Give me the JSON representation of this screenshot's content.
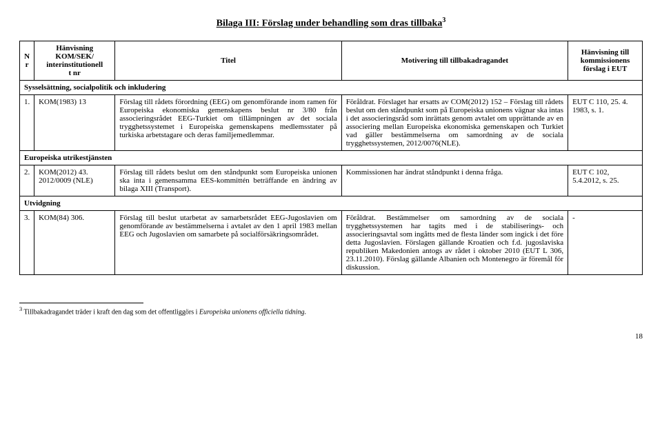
{
  "title": "Bilaga III: Förslag under behandling som dras tillbaka",
  "title_sup": "3",
  "headers": {
    "n": "N\nr",
    "ref": "Hänvisning\nKOM/SEK/\ninterinstitutionell\nt nr",
    "title": "Titel",
    "motiv": "Motivering till tillbakadragandet",
    "hanv": "Hänvisning till\nkommissionens\nförslag i EUT"
  },
  "sections": {
    "s1": "Sysselsättning, socialpolitik och inkludering",
    "s2": "Europeiska utrikestjänsten",
    "s3": "Utvidgning"
  },
  "rows": {
    "r1": {
      "n": "1.",
      "ref": "KOM(1983) 13",
      "title": "Förslag till rådets förordning (EEG) om genomförande inom ramen för Europeiska ekonomiska gemenskapens beslut nr 3/80 från associeringsrådet EEG-Turkiet om tillämpningen av det sociala trygghetssystemet i Europeiska gemenskapens medlemsstater på turkiska arbetstagare och deras familjemedlemmar.",
      "motiv": "Föråldrat. Förslaget har ersatts av COM(2012) 152 – Förslag till rådets beslut om den ståndpunkt som på Europeiska unionens vägnar ska intas i det associeringsråd som inrättats genom avtalet om upprättande av en associering mellan Europeiska ekonomiska gemenskapen och Turkiet vad gäller bestämmelserna om samordning av de sociala trygghetssystemen, 2012/0076(NLE).",
      "hanv": "EUT C 110, 25. 4. 1983, s. 1."
    },
    "r2": {
      "n": "2.",
      "ref": "KOM(2012) 43.\n2012/0009 (NLE)",
      "title": "Förslag till rådets beslut om den ståndpunkt som Europeiska unionen ska inta i gemensamma EES-kommittén beträffande en ändring av bilaga XIII (Transport).",
      "motiv": "Kommissionen har ändrat ståndpunkt i denna fråga.",
      "hanv": "EUT C 102, 5.4.2012, s. 25."
    },
    "r3": {
      "n": "3.",
      "ref": "KOM(84) 306.",
      "title": "Förslag till beslut utarbetat av samarbetsrådet EEG-Jugoslavien om genomförande av bestämmelserna i avtalet av den 1 april 1983 mellan EEG och Jugoslavien om samarbete på socialförsäkringsområdet.",
      "motiv": "Föråldrat. Bestämmelser om samordning av de sociala trygghetssystemen har tagits med i de stabiliserings- och associeringsavtal som ingåtts med de flesta länder som ingick i det före detta Jugoslavien. Förslagen gällande Kroatien och f.d. jugoslaviska republiken Makedonien antogs av rådet i oktober 2010 (EUT L 306, 23.11.2010). Förslag gällande Albanien och Montenegro är föremål för diskussion.",
      "hanv": "-"
    }
  },
  "footnote": {
    "sup": "3",
    "text": " Tillbakadragandet träder i kraft den dag som det offentliggörs i ",
    "italic": "Europeiska unionens officiella tidning",
    "after": "."
  },
  "page_number": "18"
}
